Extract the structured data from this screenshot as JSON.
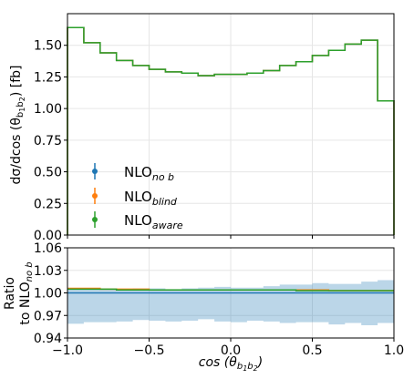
{
  "chart_data": [
    {
      "type": "line",
      "step": true,
      "panel": "main",
      "bin_edges": [
        -1.0,
        -0.9,
        -0.8,
        -0.7,
        -0.6,
        -0.5,
        -0.4,
        -0.3,
        -0.2,
        -0.1,
        0.0,
        0.1,
        0.2,
        0.3,
        0.4,
        0.5,
        0.6,
        0.7,
        0.8,
        0.9,
        1.0
      ],
      "series": [
        {
          "name_main": "NLO",
          "name_sub": "no b",
          "color": "#1f77b4",
          "values": [
            1.64,
            1.52,
            1.44,
            1.38,
            1.34,
            1.31,
            1.29,
            1.28,
            1.26,
            1.27,
            1.27,
            1.28,
            1.3,
            1.34,
            1.37,
            1.42,
            1.46,
            1.51,
            1.54,
            1.06
          ]
        },
        {
          "name_main": "NLO",
          "name_sub": "blind",
          "color": "#ff7f0e",
          "values": [
            1.64,
            1.52,
            1.44,
            1.38,
            1.34,
            1.31,
            1.29,
            1.28,
            1.26,
            1.27,
            1.27,
            1.28,
            1.3,
            1.34,
            1.37,
            1.42,
            1.46,
            1.51,
            1.54,
            1.06
          ]
        },
        {
          "name_main": "NLO",
          "name_sub": "aware",
          "color": "#2ca02c",
          "values": [
            1.64,
            1.52,
            1.44,
            1.38,
            1.34,
            1.31,
            1.29,
            1.28,
            1.26,
            1.27,
            1.27,
            1.28,
            1.3,
            1.34,
            1.37,
            1.42,
            1.46,
            1.51,
            1.54,
            1.06
          ]
        }
      ],
      "xlim": [
        -1.0,
        1.0
      ],
      "ylim": [
        0.0,
        1.75
      ],
      "yticks": [
        "0.00",
        "0.25",
        "0.50",
        "0.75",
        "1.00",
        "1.25",
        "1.50"
      ],
      "ytick_values": [
        0.0,
        0.25,
        0.5,
        0.75,
        1.0,
        1.25,
        1.5
      ],
      "ylabel_main": "dσ/dcos (θ",
      "ylabel_sub": "b",
      "ylabel_subsub1": "1",
      "ylabel_mid": "b",
      "ylabel_subsub2": "2",
      "ylabel_unit": ")   [fb]",
      "legend_position": "lower-left",
      "grid": true
    },
    {
      "type": "line",
      "step": true,
      "panel": "ratio",
      "bin_edges": [
        -1.0,
        -0.9,
        -0.8,
        -0.7,
        -0.6,
        -0.5,
        -0.4,
        -0.3,
        -0.2,
        -0.1,
        0.0,
        0.1,
        0.2,
        0.3,
        0.4,
        0.5,
        0.6,
        0.7,
        0.8,
        0.9,
        1.0
      ],
      "band_upper": [
        1.006,
        1.006,
        1.006,
        1.005,
        1.006,
        1.006,
        1.005,
        1.006,
        1.007,
        1.008,
        1.007,
        1.007,
        1.009,
        1.011,
        1.011,
        1.013,
        1.012,
        1.012,
        1.015,
        1.017
      ],
      "band_lower": [
        0.959,
        0.961,
        0.961,
        0.962,
        0.964,
        0.963,
        0.962,
        0.963,
        0.965,
        0.962,
        0.961,
        0.963,
        0.962,
        0.96,
        0.961,
        0.961,
        0.958,
        0.96,
        0.957,
        0.96
      ],
      "band_color": "#1f77b4",
      "series": [
        {
          "name": "NLO no b",
          "color": "#1f77b4",
          "values": [
            1.0,
            1.0,
            1.0,
            1.0,
            1.0,
            1.0,
            1.0,
            1.0,
            1.0,
            1.0,
            1.0,
            1.0,
            1.0,
            1.0,
            1.0,
            1.0,
            1.0,
            1.0,
            1.0,
            1.0
          ]
        },
        {
          "name": "NLO blind",
          "color": "#ff7f0e",
          "values": [
            1.006,
            1.006,
            1.005,
            1.005,
            1.005,
            1.004,
            1.004,
            1.004,
            1.004,
            1.004,
            1.004,
            1.004,
            1.004,
            1.004,
            1.004,
            1.004,
            1.003,
            1.003,
            1.003,
            1.003
          ]
        },
        {
          "name": "NLO aware",
          "color": "#2ca02c",
          "values": [
            1.005,
            1.005,
            1.005,
            1.004,
            1.004,
            1.004,
            1.004,
            1.004,
            1.004,
            1.004,
            1.004,
            1.004,
            1.004,
            1.004,
            1.003,
            1.003,
            1.003,
            1.003,
            1.003,
            1.003
          ]
        }
      ],
      "xlim": [
        -1.0,
        1.0
      ],
      "ylim": [
        0.94,
        1.06
      ],
      "yticks": [
        "0.94",
        "0.97",
        "1.00",
        "1.03",
        "1.06"
      ],
      "ytick_values": [
        0.94,
        0.97,
        1.0,
        1.03,
        1.06
      ],
      "xticks": [
        "−1.0",
        "−0.5",
        "0.0",
        "0.5",
        "1.0"
      ],
      "xtick_values": [
        -1.0,
        -0.5,
        0.0,
        0.5,
        1.0
      ],
      "ylabel_line1": "Ratio",
      "ylabel_line2_main": "to NLO",
      "ylabel_line2_sub": "no b",
      "xlabel_main": "cos (θ",
      "xlabel_sub1": "b",
      "xlabel_subsub1": "1",
      "xlabel_sub2": "b",
      "xlabel_subsub2": "2",
      "xlabel_close": ")",
      "grid": true
    }
  ]
}
